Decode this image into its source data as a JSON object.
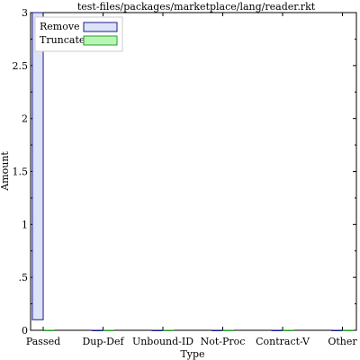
{
  "chart_data": {
    "type": "bar",
    "title": "test-files/packages/marketplace/lang/reader.rkt",
    "xlabel": "Type",
    "ylabel": "Amount",
    "categories": [
      "Passed",
      "Dup-Def",
      "Unbound-ID",
      "Not-Proc",
      "Contract-V",
      "Other"
    ],
    "ylim": [
      0,
      3
    ],
    "yticks": [
      {
        "value": 0,
        "label": "0"
      },
      {
        "value": 0.5,
        "label": ".5"
      },
      {
        "value": 1,
        "label": "1"
      },
      {
        "value": 1.5,
        "label": "1.5"
      },
      {
        "value": 2,
        "label": "2"
      },
      {
        "value": 2.5,
        "label": "2.5"
      },
      {
        "value": 3,
        "label": "3"
      }
    ],
    "series": [
      {
        "name": "Remove",
        "fill": "#dde3f7",
        "stroke": "#1a1a8c",
        "bars": [
          {
            "bottom": 0.1,
            "top": 3
          },
          {
            "bottom": 0,
            "top": 0
          },
          {
            "bottom": 0,
            "top": 0
          },
          {
            "bottom": 0,
            "top": 0
          },
          {
            "bottom": 0,
            "top": 0
          },
          {
            "bottom": 0,
            "top": 0
          }
        ]
      },
      {
        "name": "Truncate",
        "fill": "#b9f5b4",
        "stroke": "#2a9d2a",
        "bars": [
          {
            "bottom": 0,
            "top": 0
          },
          {
            "bottom": 0,
            "top": 0
          },
          {
            "bottom": 0,
            "top": 0
          },
          {
            "bottom": 0,
            "top": 0
          },
          {
            "bottom": 0,
            "top": 0
          },
          {
            "bottom": 0,
            "top": 0
          }
        ]
      }
    ],
    "legend": "top-left",
    "grid": false
  }
}
